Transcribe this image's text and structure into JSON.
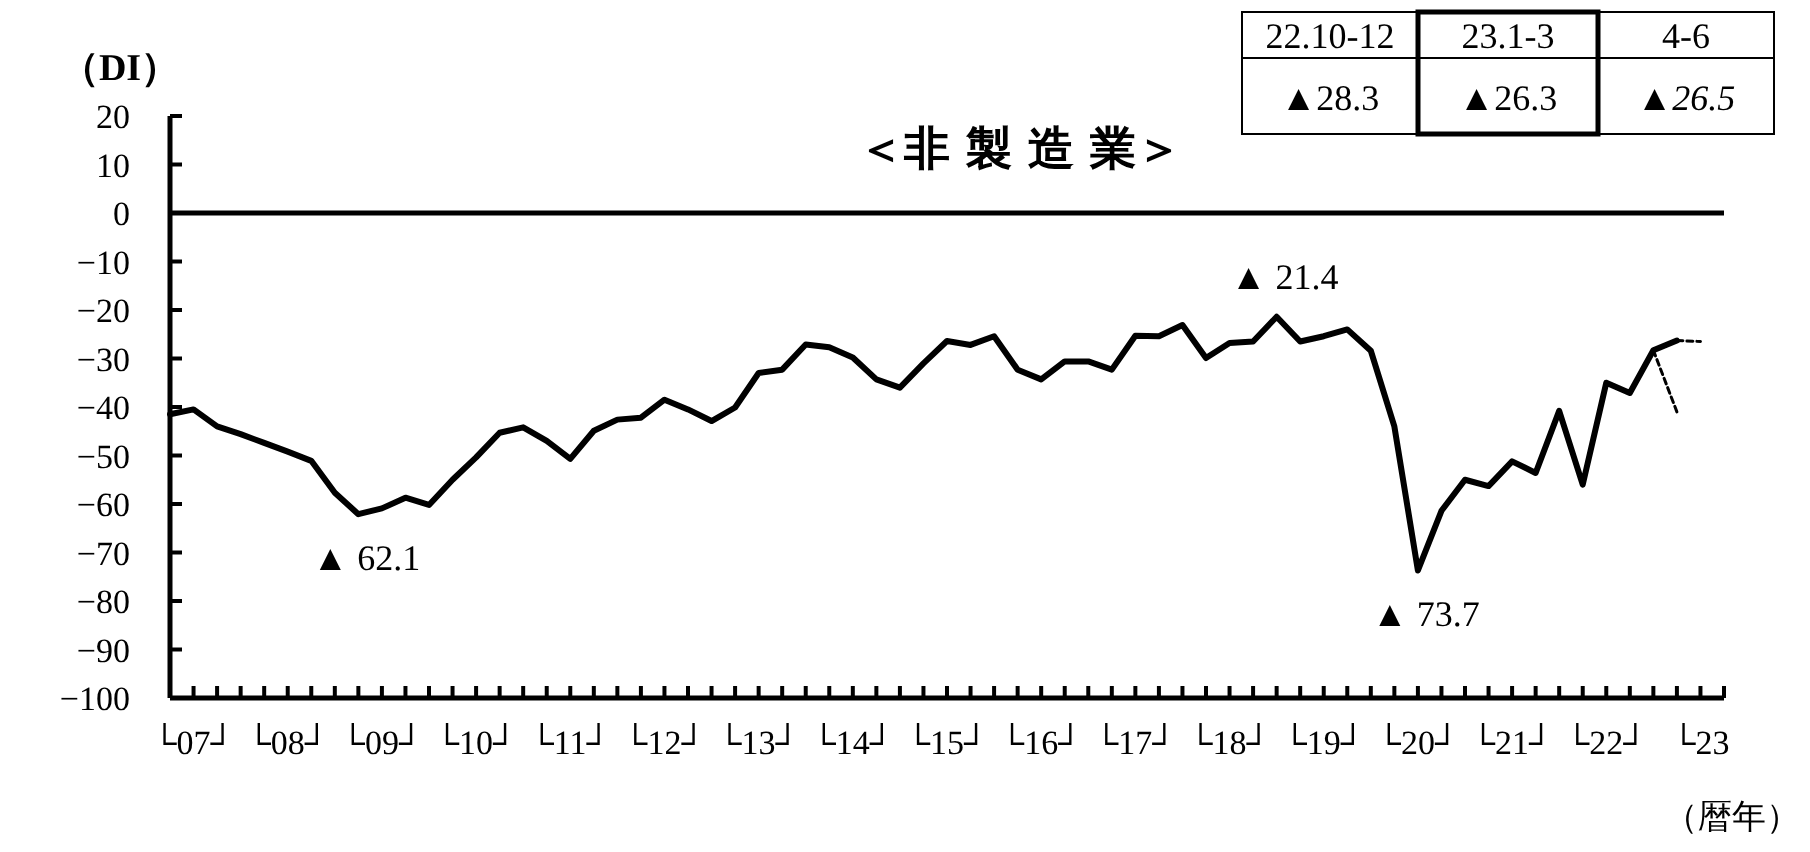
{
  "chart_data": {
    "type": "line",
    "title": "＜非 製 造 業＞",
    "ylabel": "（DI）",
    "xlabel": "（暦年）",
    "ylim": [
      -100,
      20
    ],
    "yticks": [
      -100,
      -90,
      -80,
      -70,
      -60,
      -50,
      -40,
      -30,
      -20,
      -10,
      0,
      10,
      20
    ],
    "categories": [
      null,
      "└07┘",
      null,
      null,
      null,
      "└08┘",
      null,
      null,
      null,
      "└09┘",
      null,
      null,
      null,
      "└10┘",
      null,
      null,
      null,
      "└11┘",
      null,
      null,
      null,
      "└12┘",
      null,
      null,
      null,
      "└13┘",
      null,
      null,
      null,
      "└14┘",
      null,
      null,
      null,
      "└15┘",
      null,
      null,
      null,
      "└16┘",
      null,
      null,
      null,
      "└17┘",
      null,
      null,
      null,
      "└18┘",
      null,
      null,
      null,
      "└19┘",
      null,
      null,
      null,
      "└20┘",
      null,
      null,
      null,
      "└21┘",
      null,
      null,
      null,
      "└22┘",
      null,
      null,
      null,
      "└23"
    ],
    "ref_lines": [
      {
        "axis": "y",
        "value": 0,
        "color": "#000000"
      }
    ],
    "legend": false,
    "marker": "none",
    "series": [
      {
        "color": "#000000",
        "line_style": "solid",
        "values": [
          -41.5,
          -40.5,
          -44,
          -45.6,
          -47.4,
          -49.2,
          -51.1,
          -57.7,
          -62.1,
          -60.9,
          -58.7,
          -60.2,
          -55,
          -50.4,
          -45.3,
          -44.2,
          -47,
          -50.7,
          -44.9,
          -42.6,
          -42.2,
          -38.5,
          -40.5,
          -42.9,
          -40.1,
          -33,
          -32.3,
          -27.1,
          -27.7,
          -29.8,
          -34.3,
          -36,
          -31,
          -26.4,
          -27.2,
          -25.4,
          -32.3,
          -34.3,
          -30.6,
          -30.6,
          -32.3,
          -25.3,
          -25.4,
          -23.1,
          -29.9,
          -26.8,
          -26.5,
          -21.4,
          -26.5,
          -25.4,
          -24,
          -28.4,
          -44,
          -73.7,
          -61.4,
          -55,
          -56.3,
          -51.2,
          -53.6,
          -40.8,
          -56,
          -35,
          -37.1,
          -28.3,
          -26.3,
          null
        ]
      },
      {
        "color": "#000000",
        "line_style": "dashed",
        "values": [
          null,
          null,
          null,
          null,
          null,
          null,
          null,
          null,
          null,
          null,
          null,
          null,
          null,
          null,
          null,
          null,
          null,
          null,
          null,
          null,
          null,
          null,
          null,
          null,
          null,
          null,
          null,
          null,
          null,
          null,
          null,
          null,
          null,
          null,
          null,
          null,
          null,
          null,
          null,
          null,
          null,
          null,
          null,
          null,
          null,
          null,
          null,
          null,
          null,
          null,
          null,
          null,
          null,
          null,
          null,
          null,
          null,
          null,
          null,
          null,
          null,
          null,
          null,
          -28.3,
          -41,
          null
        ]
      },
      {
        "color": "#000000",
        "line_style": "dashed",
        "values": [
          null,
          null,
          null,
          null,
          null,
          null,
          null,
          null,
          null,
          null,
          null,
          null,
          null,
          null,
          null,
          null,
          null,
          null,
          null,
          null,
          null,
          null,
          null,
          null,
          null,
          null,
          null,
          null,
          null,
          null,
          null,
          null,
          null,
          null,
          null,
          null,
          null,
          null,
          null,
          null,
          null,
          null,
          null,
          null,
          null,
          null,
          null,
          null,
          null,
          null,
          null,
          null,
          null,
          null,
          null,
          null,
          null,
          null,
          null,
          null,
          null,
          null,
          null,
          null,
          -26.3,
          -26.5
        ]
      }
    ],
    "annotations": [
      {
        "text": "▲ 62.1",
        "y": -62.1
      },
      {
        "text": "▲ 21.4",
        "y": -21.4
      },
      {
        "text": "▲ 73.7",
        "y": -73.7
      },
      "22.10-12",
      "23.1-3",
      "4-6",
      "▲28.3",
      "▲26.3",
      "*▲26.5*"
    ]
  }
}
